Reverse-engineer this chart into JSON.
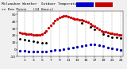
{
  "title_left": "Milwaukee Weather  Outdoor Temperature",
  "title_right": "vs Dew Point   (24 Hours)",
  "temp_x": [
    0,
    0.5,
    1,
    1.5,
    2,
    2.5,
    3,
    3.5,
    4,
    4.5,
    5,
    5.5,
    6,
    6.5,
    7,
    7.5,
    8,
    8.5,
    9,
    9.5,
    10,
    10.5,
    11,
    11.5,
    12,
    12.5,
    13,
    13.5,
    14,
    14.5,
    15,
    15.5,
    16,
    16.5,
    17,
    17.5,
    18,
    18.5,
    19,
    19.5,
    20,
    20.5,
    21,
    21.5,
    22,
    22.5,
    23
  ],
  "temp_y": [
    24,
    23,
    23,
    22,
    22,
    22,
    21,
    21,
    21,
    21,
    22,
    24,
    27,
    31,
    35,
    38,
    41,
    44,
    46,
    47,
    48,
    48,
    47,
    46,
    45,
    44,
    44,
    43,
    42,
    41,
    40,
    39,
    37,
    35,
    33,
    31,
    29,
    27,
    26,
    25,
    24,
    23,
    23,
    22,
    22,
    21,
    21
  ],
  "dew_x": [
    0,
    1,
    2,
    3,
    4,
    5,
    6,
    7,
    8,
    9,
    10,
    11,
    12,
    13,
    14,
    15,
    16,
    17,
    18,
    19,
    20,
    21,
    22,
    23
  ],
  "dew_y": [
    -2,
    -2,
    -3,
    -3,
    -3,
    -3,
    -3,
    -2,
    -1,
    0,
    1,
    2,
    3,
    4,
    5,
    6,
    7,
    7,
    6,
    5,
    3,
    2,
    1,
    0
  ],
  "black_x": [
    0,
    1,
    2,
    3,
    4,
    5,
    6,
    14,
    16,
    17,
    19,
    20,
    21,
    22,
    23
  ],
  "black_y": [
    15,
    14,
    13,
    12,
    11,
    10,
    10,
    38,
    32,
    29,
    22,
    20,
    18,
    17,
    16
  ],
  "ylim": [
    -10,
    55
  ],
  "xlim": [
    -0.5,
    23.5
  ],
  "ytick_vals": [
    -10,
    0,
    10,
    20,
    30,
    40,
    50
  ],
  "ytick_labels": [
    "-10",
    "0",
    "10",
    "20",
    "30",
    "40",
    "50"
  ],
  "xtick_vals": [
    1,
    3,
    5,
    7,
    9,
    11,
    13,
    15,
    17,
    19,
    21,
    23
  ],
  "xtick_labels": [
    "1",
    "3",
    "5",
    "7",
    "9",
    "11",
    "13",
    "15",
    "17",
    "19",
    "21",
    "23"
  ],
  "temp_color": "#cc0000",
  "dew_color": "#0000bb",
  "black_color": "#000000",
  "bg_color": "#f0f0f0",
  "plot_bg": "#ffffff",
  "grid_color": "#999999",
  "legend_blue_color": "#0000cc",
  "legend_red_color": "#cc0000",
  "title_fontsize": 3.5,
  "tick_fontsize": 3.2,
  "dot_size_temp": 1.8,
  "dot_size_dew": 1.8,
  "dot_size_black": 1.2
}
